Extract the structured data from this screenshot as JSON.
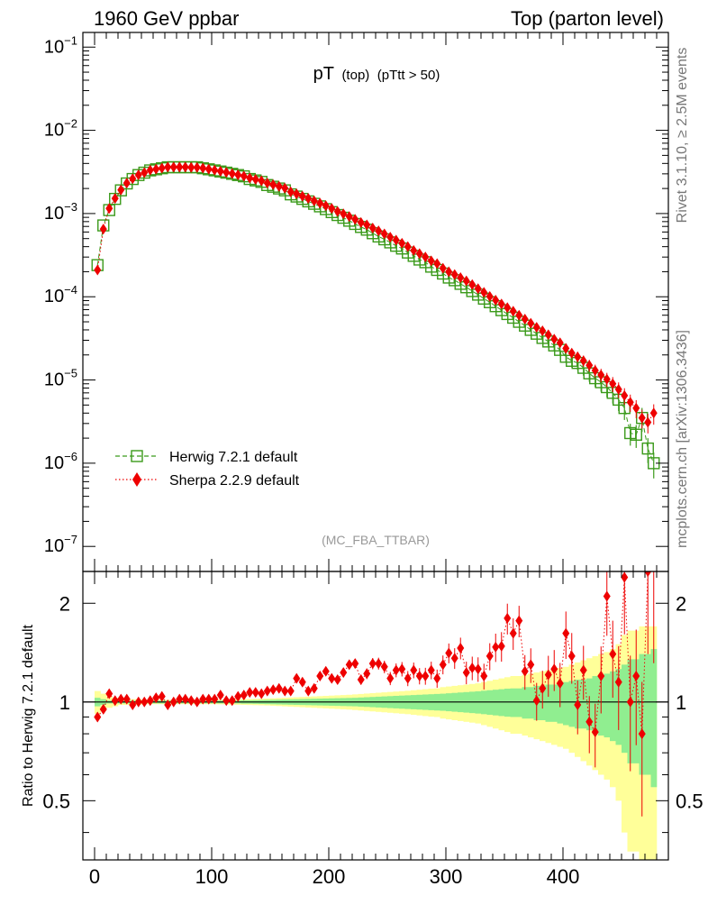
{
  "header": {
    "left": "1960 GeV ppbar",
    "right": "Top (parton level)"
  },
  "side_labels": {
    "rivet": "Rivet 3.1.10, ≥ 2.5M events",
    "site": "mcplots.cern.ch [arXiv:1306.3436]"
  },
  "analysis_tag": "(MC_FBA_TTBAR)",
  "chart_data": [
    {
      "type": "scatter",
      "panel": "main",
      "title": "pT",
      "subtitle_parts": [
        "(top)",
        "(pTtt > 50)"
      ],
      "xlabel": "",
      "ylabel": "",
      "xlim": [
        -10,
        490
      ],
      "ylim": [
        5e-08,
        0.15
      ],
      "yscale": "log",
      "ytick_labels": [
        {
          "base": "10",
          "exp": "−1",
          "value": 0.1
        },
        {
          "base": "10",
          "exp": "−2",
          "value": 0.01
        },
        {
          "base": "10",
          "exp": "−3",
          "value": 0.001
        },
        {
          "base": "10",
          "exp": "−4",
          "value": 0.0001
        },
        {
          "base": "10",
          "exp": "−5",
          "value": 1e-05
        },
        {
          "base": "10",
          "exp": "−6",
          "value": 1e-06
        },
        {
          "base": "10",
          "exp": "−7",
          "value": 1e-07
        }
      ],
      "legend_position": "bottom-left",
      "x": [
        2.5,
        7.5,
        12.5,
        17.5,
        22.5,
        27.5,
        32.5,
        37.5,
        42.5,
        47.5,
        52.5,
        57.5,
        62.5,
        67.5,
        72.5,
        77.5,
        82.5,
        87.5,
        92.5,
        97.5,
        102.5,
        107.5,
        112.5,
        117.5,
        122.5,
        127.5,
        132.5,
        137.5,
        142.5,
        147.5,
        152.5,
        157.5,
        162.5,
        167.5,
        172.5,
        177.5,
        182.5,
        187.5,
        192.5,
        197.5,
        202.5,
        207.5,
        212.5,
        217.5,
        222.5,
        227.5,
        232.5,
        237.5,
        242.5,
        247.5,
        252.5,
        257.5,
        262.5,
        267.5,
        272.5,
        277.5,
        282.5,
        287.5,
        292.5,
        297.5,
        302.5,
        307.5,
        312.5,
        317.5,
        322.5,
        327.5,
        332.5,
        337.5,
        342.5,
        347.5,
        352.5,
        357.5,
        362.5,
        367.5,
        372.5,
        377.5,
        382.5,
        387.5,
        392.5,
        397.5,
        402.5,
        407.5,
        412.5,
        417.5,
        422.5,
        427.5,
        432.5,
        437.5,
        442.5,
        447.5,
        452.5,
        457.5,
        462.5,
        467.5,
        472.5,
        477.5
      ],
      "series": [
        {
          "name": "Herwig 7.2.1 default",
          "color": "#3a9a1a",
          "marker": "open-square",
          "line": "dashed",
          "values": [
            0.00024,
            0.00072,
            0.0011,
            0.0015,
            0.0019,
            0.0023,
            0.0026,
            0.0029,
            0.0031,
            0.0033,
            0.0034,
            0.0035,
            0.0036,
            0.0036,
            0.0036,
            0.0036,
            0.0036,
            0.0036,
            0.0035,
            0.0034,
            0.0033,
            0.0032,
            0.0031,
            0.003,
            0.0029,
            0.0028,
            0.0026,
            0.0025,
            0.0024,
            0.0022,
            0.0021,
            0.002,
            0.0019,
            0.0017,
            0.0016,
            0.0015,
            0.0014,
            0.00131,
            0.00122,
            0.00113,
            0.00104,
            0.00096,
            0.00089,
            0.00082,
            0.00075,
            0.00069,
            0.00064,
            0.00058,
            0.00053,
            0.00049,
            0.00045,
            0.00041,
            0.00038,
            0.00034,
            0.00031,
            0.00028,
            0.00026,
            0.00023,
            0.00021,
            0.00019,
            0.00017,
            0.000158,
            0.000143,
            0.00013,
            0.000117,
            0.000106,
            9.5e-05,
            8.6e-05,
            7.7e-05,
            6.9e-05,
            6.2e-05,
            5.6e-05,
            5e-05,
            4.5e-05,
            4e-05,
            3.6e-05,
            3.2e-05,
            2.9e-05,
            2.6e-05,
            2.3e-05,
            1.9e-05,
            1.7e-05,
            1.6e-05,
            1.4e-05,
            1.2e-05,
            1.05e-05,
            9.4e-06,
            8.2e-06,
            7e-06,
            5.8e-06,
            4.6e-06,
            2.3e-06,
            2.2e-06,
            3.5e-06,
            1.5e-06,
            1e-06
          ]
        },
        {
          "name": "Sherpa 2.2.9 default",
          "color": "#ee0000",
          "marker": "filled-diamond",
          "line": "dotted",
          "values": [
            0.00021,
            0.00065,
            0.00115,
            0.00152,
            0.00192,
            0.00232,
            0.00262,
            0.00292,
            0.0031,
            0.00332,
            0.00342,
            0.00352,
            0.00362,
            0.00362,
            0.00362,
            0.00362,
            0.00358,
            0.00358,
            0.00352,
            0.00342,
            0.00332,
            0.00322,
            0.00312,
            0.00302,
            0.00292,
            0.00282,
            0.00267,
            0.00257,
            0.00247,
            0.00232,
            0.00222,
            0.00212,
            0.00202,
            0.00182,
            0.00172,
            0.00162,
            0.00152,
            0.00142,
            0.00133,
            0.00124,
            0.00115,
            0.00106,
            0.00099,
            0.00092,
            0.00085,
            0.00078,
            0.00073,
            0.00067,
            0.00062,
            0.00057,
            0.00052,
            0.00048,
            0.00044,
            0.0004,
            0.00036,
            0.00033,
            0.0003,
            0.00027,
            0.00025,
            0.00022,
            0.0002,
            0.000185,
            0.00017,
            0.000155,
            0.00014,
            0.000125,
            0.000113,
            0.000101,
            9.1e-05,
            8.2e-05,
            7.4e-05,
            6.7e-05,
            6e-05,
            5.4e-05,
            4.8e-05,
            4.3e-05,
            3.9e-05,
            3.5e-05,
            3.1e-05,
            2.8e-05,
            2.4e-05,
            2.1e-05,
            1.9e-05,
            1.7e-05,
            1.5e-05,
            1.3e-05,
            1.15e-05,
            1.02e-05,
            9e-06,
            7.7e-06,
            6.5e-06,
            5.4e-06,
            4.6e-06,
            3.5e-06,
            3.1e-06,
            4e-06
          ]
        }
      ]
    },
    {
      "type": "scatter",
      "panel": "ratio",
      "ylabel": "Ratio to Herwig 7.2.1 default",
      "xlabel": "",
      "xlim": [
        -10,
        490
      ],
      "ylim": [
        0.33,
        2.5
      ],
      "yscale": "log",
      "yticks": [
        0.5,
        1,
        2
      ],
      "ytick_labels": [
        "0.5",
        "1",
        "2"
      ],
      "xticks": [
        0,
        100,
        200,
        300,
        400
      ],
      "xtick_labels": [
        "0",
        "100",
        "200",
        "300",
        "400"
      ],
      "band_colors": {
        "stat": "#90ee90",
        "total": "#ffff99"
      },
      "reference_line": 1,
      "x": [
        2.5,
        7.5,
        12.5,
        17.5,
        22.5,
        27.5,
        32.5,
        37.5,
        42.5,
        47.5,
        52.5,
        57.5,
        62.5,
        67.5,
        72.5,
        77.5,
        82.5,
        87.5,
        92.5,
        97.5,
        102.5,
        107.5,
        112.5,
        117.5,
        122.5,
        127.5,
        132.5,
        137.5,
        142.5,
        147.5,
        152.5,
        157.5,
        162.5,
        167.5,
        172.5,
        177.5,
        182.5,
        187.5,
        192.5,
        197.5,
        202.5,
        207.5,
        212.5,
        217.5,
        222.5,
        227.5,
        232.5,
        237.5,
        242.5,
        247.5,
        252.5,
        257.5,
        262.5,
        267.5,
        272.5,
        277.5,
        282.5,
        287.5,
        292.5,
        297.5,
        302.5,
        307.5,
        312.5,
        317.5,
        322.5,
        327.5,
        332.5,
        337.5,
        342.5,
        347.5,
        352.5,
        357.5,
        362.5,
        367.5,
        372.5,
        377.5,
        382.5,
        387.5,
        392.5,
        397.5,
        402.5,
        407.5,
        412.5,
        417.5,
        422.5,
        427.5,
        432.5,
        437.5,
        442.5,
        447.5,
        452.5,
        457.5,
        462.5,
        467.5,
        472.5,
        477.5
      ],
      "series": [
        {
          "name": "Sherpa 2.2.9 default",
          "color": "#ee0000",
          "values": [
            0.9,
            0.95,
            1.06,
            1.01,
            1.02,
            1.02,
            0.98,
            1.0,
            1.0,
            1.01,
            1.03,
            1.04,
            0.98,
            1.0,
            1.02,
            1.02,
            1.01,
            1.0,
            1.02,
            1.02,
            1.02,
            1.05,
            1.01,
            1.01,
            1.04,
            1.05,
            1.07,
            1.07,
            1.06,
            1.08,
            1.09,
            1.1,
            1.08,
            1.08,
            1.18,
            1.15,
            1.08,
            1.1,
            1.2,
            1.24,
            1.18,
            1.17,
            1.23,
            1.3,
            1.31,
            1.17,
            1.22,
            1.31,
            1.31,
            1.28,
            1.18,
            1.25,
            1.26,
            1.18,
            1.25,
            1.2,
            1.2,
            1.25,
            1.18,
            1.3,
            1.41,
            1.36,
            1.46,
            1.23,
            1.27,
            1.26,
            1.2,
            1.38,
            1.47,
            1.48,
            1.8,
            1.62,
            1.77,
            1.24,
            1.3,
            1.01,
            1.1,
            1.21,
            1.26,
            1.14,
            1.62,
            1.38,
            0.98,
            1.25,
            0.87,
            0.81,
            1.2,
            2.1,
            1.4,
            1.15,
            2.4,
            1.0,
            1.2,
            0.8,
            2.5,
            2.6
          ],
          "band_stat": [
            0.03,
            0.02,
            0.01,
            0.01,
            0.01,
            0.01,
            0.01,
            0.01,
            0.01,
            0.01,
            0.01,
            0.01,
            0.01,
            0.01,
            0.01,
            0.01,
            0.01,
            0.01,
            0.01,
            0.01,
            0.01,
            0.01,
            0.01,
            0.01,
            0.01,
            0.012,
            0.012,
            0.013,
            0.014,
            0.015,
            0.016,
            0.017,
            0.018,
            0.019,
            0.02,
            0.021,
            0.022,
            0.023,
            0.024,
            0.025,
            0.026,
            0.027,
            0.028,
            0.029,
            0.03,
            0.032,
            0.034,
            0.036,
            0.038,
            0.04,
            0.042,
            0.044,
            0.046,
            0.048,
            0.05,
            0.052,
            0.054,
            0.056,
            0.058,
            0.06,
            0.063,
            0.066,
            0.069,
            0.072,
            0.075,
            0.078,
            0.082,
            0.086,
            0.09,
            0.094,
            0.098,
            0.1,
            0.1,
            0.11,
            0.11,
            0.12,
            0.12,
            0.13,
            0.13,
            0.14,
            0.15,
            0.16,
            0.17,
            0.17,
            0.18,
            0.2,
            0.21,
            0.22,
            0.24,
            0.26,
            0.3,
            0.35,
            0.35,
            0.4,
            0.4,
            0.45
          ],
          "band_total": [
            0.08,
            0.06,
            0.04,
            0.03,
            0.02,
            0.02,
            0.02,
            0.02,
            0.015,
            0.015,
            0.015,
            0.015,
            0.015,
            0.015,
            0.015,
            0.015,
            0.015,
            0.015,
            0.015,
            0.015,
            0.015,
            0.016,
            0.017,
            0.018,
            0.019,
            0.02,
            0.021,
            0.022,
            0.023,
            0.024,
            0.026,
            0.028,
            0.03,
            0.032,
            0.034,
            0.036,
            0.038,
            0.04,
            0.042,
            0.044,
            0.046,
            0.048,
            0.05,
            0.052,
            0.055,
            0.058,
            0.061,
            0.064,
            0.067,
            0.07,
            0.073,
            0.076,
            0.079,
            0.082,
            0.086,
            0.09,
            0.094,
            0.098,
            0.1,
            0.11,
            0.115,
            0.12,
            0.125,
            0.13,
            0.135,
            0.14,
            0.15,
            0.16,
            0.17,
            0.18,
            0.19,
            0.2,
            0.2,
            0.21,
            0.22,
            0.23,
            0.24,
            0.25,
            0.26,
            0.27,
            0.28,
            0.3,
            0.32,
            0.34,
            0.36,
            0.38,
            0.4,
            0.42,
            0.45,
            0.5,
            0.6,
            0.65,
            0.65,
            0.7,
            0.7,
            0.7
          ]
        }
      ]
    }
  ]
}
